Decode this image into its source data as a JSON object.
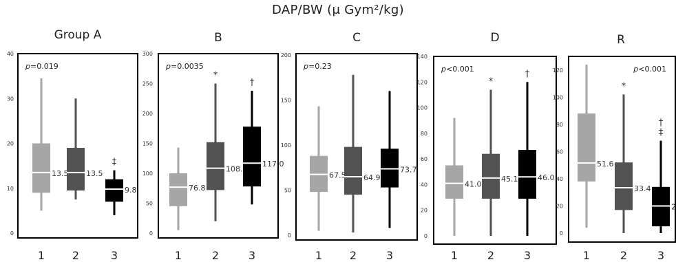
{
  "title": "DAP/BW (μ Gym²/kg)",
  "colors": {
    "box1": "#a6a6a6",
    "box2": "#525252",
    "box3": "#000000",
    "median": "#ffffff",
    "frame": "#000000"
  },
  "chart_data": [
    {
      "type": "box",
      "title": "Group A",
      "p_label": "p=0.019",
      "ylim": [
        0,
        40
      ],
      "yticks": [
        "0",
        "10",
        "20",
        "30",
        "40"
      ],
      "categories": [
        "1",
        "2",
        "3"
      ],
      "boxes": [
        {
          "min": 5,
          "q1": 9,
          "median": 13.5,
          "q3": 20,
          "max": 34.5,
          "label": "13.5",
          "mark": ""
        },
        {
          "min": 7.5,
          "q1": 9.5,
          "median": 13.5,
          "q3": 19,
          "max": 30,
          "label": "13.5",
          "mark": ""
        },
        {
          "min": 4,
          "q1": 7,
          "median": 9.8,
          "q3": 12,
          "max": 14,
          "label": "9.8",
          "mark": "‡"
        }
      ]
    },
    {
      "type": "box",
      "title": "B",
      "p_label": "p=0.0035",
      "ylim": [
        0,
        300
      ],
      "yticks": [
        "0",
        "50",
        "100",
        "150",
        "200",
        "250",
        "300"
      ],
      "categories": [
        "1",
        "2",
        "3"
      ],
      "boxes": [
        {
          "min": 5,
          "q1": 45,
          "median": 76.8,
          "q3": 100,
          "max": 143,
          "label": "76.8",
          "mark": ""
        },
        {
          "min": 20,
          "q1": 72,
          "median": 108.5,
          "q3": 152,
          "max": 250,
          "label": "108.5",
          "mark": "*"
        },
        {
          "min": 48,
          "q1": 78,
          "median": 117.0,
          "q3": 178,
          "max": 238,
          "label": "117.0",
          "mark": "†"
        }
      ]
    },
    {
      "type": "box",
      "title": "C",
      "p_label": "p=0.23",
      "ylim": [
        0,
        200
      ],
      "yticks": [
        "0",
        "50",
        "100",
        "150",
        "200"
      ],
      "categories": [
        "1",
        "2",
        "3"
      ],
      "boxes": [
        {
          "min": 5,
          "q1": 48,
          "median": 67.5,
          "q3": 88,
          "max": 143,
          "label": "67.5",
          "mark": ""
        },
        {
          "min": 3,
          "q1": 45,
          "median": 64.9,
          "q3": 98,
          "max": 178,
          "label": "64.9",
          "mark": ""
        },
        {
          "min": 8,
          "q1": 53,
          "median": 73.7,
          "q3": 96,
          "max": 160,
          "label": "73.7",
          "mark": ""
        }
      ]
    },
    {
      "type": "box",
      "title": "D",
      "p_label": "p<0.001",
      "ylim": [
        0,
        140
      ],
      "yticks": [
        "0",
        "20",
        "40",
        "60",
        "80",
        "100",
        "120",
        "140"
      ],
      "categories": [
        "1",
        "2",
        "3"
      ],
      "boxes": [
        {
          "min": 0,
          "q1": 29,
          "median": 41.0,
          "q3": 55,
          "max": 92,
          "label": "41.0",
          "mark": ""
        },
        {
          "min": 0,
          "q1": 29,
          "median": 45.1,
          "q3": 64,
          "max": 114,
          "label": "45.1",
          "mark": "*"
        },
        {
          "min": 0,
          "q1": 29,
          "median": 46.0,
          "q3": 67,
          "max": 120,
          "label": "46.0",
          "mark": "†"
        }
      ]
    },
    {
      "type": "box",
      "title": "R",
      "p_label": "p<0.001",
      "ylim": [
        0,
        130
      ],
      "yticks": [
        "0",
        "20",
        "40",
        "60",
        "80",
        "100",
        "120"
      ],
      "categories": [
        "1",
        "2",
        "3"
      ],
      "boxes": [
        {
          "min": 4,
          "q1": 38,
          "median": 51.6,
          "q3": 88,
          "max": 124,
          "label": "51.6",
          "mark": ""
        },
        {
          "min": 0,
          "q1": 17,
          "median": 33.4,
          "q3": 52,
          "max": 102,
          "label": "33.4",
          "mark": "*"
        },
        {
          "min": 0,
          "q1": 5,
          "median": 20,
          "q3": 34,
          "max": 68,
          "label": "20",
          "mark": "†\n‡"
        }
      ]
    }
  ]
}
